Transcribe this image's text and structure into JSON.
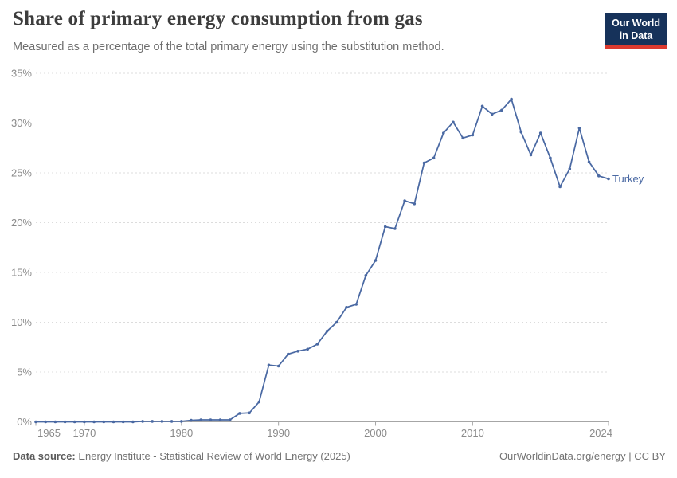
{
  "header": {
    "title": "Share of primary energy consumption from gas",
    "subtitle": "Measured as a percentage of the total primary energy using the substitution method.",
    "logo": {
      "line1": "Our World",
      "line2": "in Data"
    }
  },
  "chart_data": {
    "type": "line",
    "title": "Share of primary energy consumption from gas",
    "xlabel": "",
    "ylabel": "",
    "x_range": [
      1965,
      2024
    ],
    "ylim": [
      0,
      35
    ],
    "y_ticks": [
      0,
      5,
      10,
      15,
      20,
      25,
      30,
      35
    ],
    "y_tick_suffix": "%",
    "x_ticks": [
      1965,
      1970,
      1980,
      1990,
      2000,
      2010,
      2024
    ],
    "grid": "horizontal-dashed",
    "legend_position": "end-of-line",
    "series": [
      {
        "name": "Turkey",
        "color": "#4a69a3",
        "x": [
          1965,
          1966,
          1967,
          1968,
          1969,
          1970,
          1971,
          1972,
          1973,
          1974,
          1975,
          1976,
          1977,
          1978,
          1979,
          1980,
          1981,
          1982,
          1983,
          1984,
          1985,
          1986,
          1987,
          1988,
          1989,
          1990,
          1991,
          1992,
          1993,
          1994,
          1995,
          1996,
          1997,
          1998,
          1999,
          2000,
          2001,
          2002,
          2003,
          2004,
          2005,
          2006,
          2007,
          2008,
          2009,
          2010,
          2011,
          2012,
          2013,
          2014,
          2015,
          2016,
          2017,
          2018,
          2019,
          2020,
          2021,
          2022,
          2023,
          2024
        ],
        "values": [
          0,
          0,
          0,
          0,
          0,
          0,
          0,
          0,
          0,
          0,
          0,
          0.05,
          0.05,
          0.05,
          0.05,
          0.05,
          0.15,
          0.2,
          0.2,
          0.2,
          0.2,
          0.85,
          0.9,
          2,
          5.7,
          5.6,
          6.8,
          7.1,
          7.3,
          7.8,
          9.1,
          10,
          11.5,
          11.8,
          14.7,
          16.2,
          19.6,
          19.4,
          22.2,
          21.9,
          26,
          26.5,
          29,
          30.1,
          28.5,
          28.8,
          31.7,
          30.9,
          31.3,
          32.4,
          29.1,
          26.8,
          29,
          26.5,
          23.6,
          25.4,
          29.5,
          26.1,
          24.7,
          24.4
        ]
      }
    ]
  },
  "footer": {
    "source_label": "Data source:",
    "source_text": " Energy Institute - Statistical Review of World Energy (2025)",
    "right_text": "OurWorldinData.org/energy | CC BY"
  },
  "colors": {
    "line": "#4a69a3",
    "grid": "#dcdcdc",
    "axis": "#a6a6a6",
    "tick_label": "#8a8a8a",
    "logo_bg": "#16325a",
    "logo_bar": "#dc3a2f"
  }
}
